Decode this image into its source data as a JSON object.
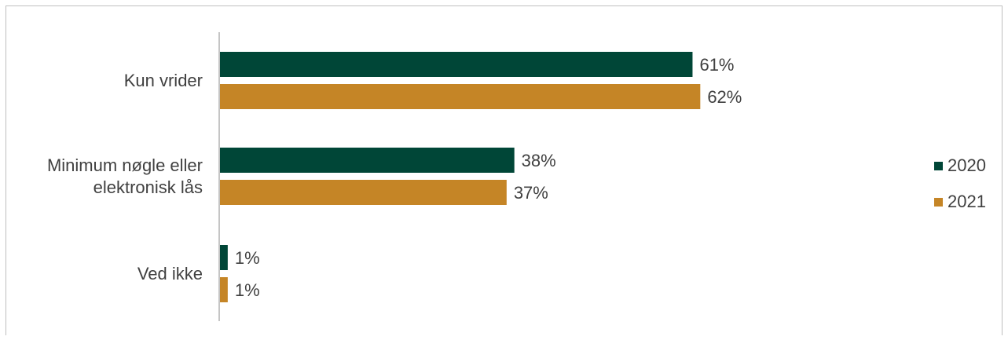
{
  "chart_data": {
    "type": "bar",
    "orientation": "horizontal",
    "categories": [
      "Kun vrider",
      "Minimum nøgle eller elektronisk lås",
      "Ved ikke"
    ],
    "category_lines": [
      [
        "Kun vrider"
      ],
      [
        "Minimum nøgle eller",
        "elektronisk lås"
      ],
      [
        "Ved ikke"
      ]
    ],
    "series": [
      {
        "name": "2020",
        "values": [
          61,
          38,
          1
        ],
        "labels": [
          "61%",
          "38%",
          "1%"
        ],
        "color": "#004637"
      },
      {
        "name": "2021",
        "values": [
          62,
          37,
          1
        ],
        "labels": [
          "62%",
          "37%",
          "1%"
        ],
        "color": "#c58526"
      }
    ],
    "unit": "%",
    "xlim": [
      0,
      100
    ],
    "grid": false,
    "legend_position": "right"
  }
}
